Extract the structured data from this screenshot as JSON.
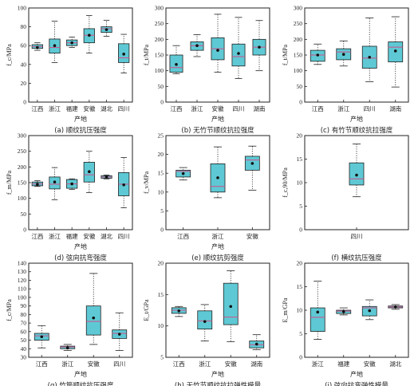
{
  "colors": {
    "box_fill": "#5ec9d4",
    "median_line": "#d1508a",
    "axis": "#222222"
  },
  "chart_data": [
    {
      "type": "box",
      "title": "(a) 顺纹抗压强度",
      "ylabel": "f_c/MPa",
      "xlabel": "产地",
      "ylim": [
        0,
        100
      ],
      "yticks": [
        0,
        20,
        40,
        60,
        80,
        100
      ],
      "categories": [
        "江西",
        "浙江",
        "福建",
        "安徽",
        "湖北",
        "四川"
      ],
      "boxes": [
        {
          "min": 55,
          "q1": 57,
          "median": 59,
          "q3": 61,
          "max": 63,
          "mean": 58
        },
        {
          "min": 42,
          "q1": 52,
          "median": 58,
          "q3": 67,
          "max": 86,
          "mean": 60
        },
        {
          "min": 58,
          "q1": 60,
          "median": 63,
          "q3": 66,
          "max": 69,
          "mean": 63
        },
        {
          "min": 52,
          "q1": 63,
          "median": 71,
          "q3": 78,
          "max": 92,
          "mean": 71
        },
        {
          "min": 70,
          "q1": 74,
          "median": 78,
          "q3": 80,
          "max": 87,
          "mean": 77
        },
        {
          "min": 31,
          "q1": 42,
          "median": 47,
          "q3": 62,
          "max": 72,
          "mean": 51
        }
      ]
    },
    {
      "type": "box",
      "title": "(b) 无竹节顺纹抗拉强度",
      "ylabel": "f_t/MPa",
      "xlabel": "产地",
      "ylim": [
        0,
        300
      ],
      "yticks": [
        0,
        50,
        100,
        150,
        200,
        250,
        300
      ],
      "categories": [
        "江西",
        "浙江",
        "安徽",
        "四川",
        "湖南"
      ],
      "boxes": [
        {
          "min": 90,
          "q1": 95,
          "median": 110,
          "q3": 150,
          "max": 180,
          "mean": 120
        },
        {
          "min": 145,
          "q1": 165,
          "median": 180,
          "q3": 192,
          "max": 215,
          "mean": 180
        },
        {
          "min": 95,
          "q1": 135,
          "median": 170,
          "q3": 205,
          "max": 280,
          "mean": 165
        },
        {
          "min": 75,
          "q1": 115,
          "median": 145,
          "q3": 185,
          "max": 270,
          "mean": 155
        },
        {
          "min": 100,
          "q1": 150,
          "median": 175,
          "q3": 200,
          "max": 260,
          "mean": 175
        }
      ]
    },
    {
      "type": "box",
      "title": "(c) 有竹节顺纹抗拉强度",
      "ylabel": "f_t/MPa",
      "xlabel": "产地",
      "ylim": [
        0,
        300
      ],
      "yticks": [
        0,
        50,
        100,
        150,
        200,
        250,
        300
      ],
      "categories": [
        "江西",
        "浙江",
        "四川",
        "湖南"
      ],
      "boxes": [
        {
          "min": 120,
          "q1": 130,
          "median": 150,
          "q3": 165,
          "max": 185,
          "mean": 150
        },
        {
          "min": 115,
          "q1": 135,
          "median": 160,
          "q3": 170,
          "max": 195,
          "mean": 152
        },
        {
          "min": 65,
          "q1": 108,
          "median": 140,
          "q3": 178,
          "max": 268,
          "mean": 143
        },
        {
          "min": 48,
          "q1": 128,
          "median": 175,
          "q3": 192,
          "max": 272,
          "mean": 163
        }
      ]
    },
    {
      "type": "box",
      "title": "(d) 弦向抗弯强度",
      "ylabel": "f_m/MPa",
      "xlabel": "产地",
      "ylim": [
        0,
        300
      ],
      "yticks": [
        0,
        50,
        100,
        150,
        200,
        250,
        300
      ],
      "categories": [
        "江西",
        "浙江",
        "福建",
        "安徽",
        "湖北",
        "四川"
      ],
      "boxes": [
        {
          "min": 138,
          "q1": 140,
          "median": 146,
          "q3": 152,
          "max": 156,
          "mean": 145
        },
        {
          "min": 95,
          "q1": 130,
          "median": 145,
          "q3": 168,
          "max": 198,
          "mean": 152
        },
        {
          "min": 128,
          "q1": 132,
          "median": 146,
          "q3": 160,
          "max": 162,
          "mean": 146
        },
        {
          "min": 118,
          "q1": 152,
          "median": 175,
          "q3": 215,
          "max": 250,
          "mean": 185
        },
        {
          "min": 162,
          "q1": 164,
          "median": 168,
          "q3": 172,
          "max": 174,
          "mean": 168
        },
        {
          "min": 70,
          "q1": 108,
          "median": 145,
          "q3": 182,
          "max": 230,
          "mean": 143
        }
      ]
    },
    {
      "type": "box",
      "title": "(e) 顺纹抗剪强度",
      "ylabel": "f_v/MPa",
      "xlabel": "产地",
      "ylim": [
        0,
        25
      ],
      "yticks": [
        0,
        5,
        10,
        15,
        20,
        25
      ],
      "categories": [
        "江西",
        "浙江",
        "安徽"
      ],
      "boxes": [
        {
          "min": 13.2,
          "q1": 14.0,
          "median": 15.5,
          "q3": 15.8,
          "max": 16.5,
          "mean": 14.9
        },
        {
          "min": 8.5,
          "q1": 10.0,
          "median": 11.5,
          "q3": 17.5,
          "max": 22.0,
          "mean": 13.8
        },
        {
          "min": 10.5,
          "q1": 15.8,
          "median": 18.5,
          "q3": 19.5,
          "max": 22.2,
          "mean": 17.6
        }
      ]
    },
    {
      "type": "box",
      "title": "(f) 横纹抗压强度",
      "ylabel": "f_c,90/MPa",
      "xlabel": "",
      "ylim": [
        0,
        20
      ],
      "yticks": [
        0,
        5,
        10,
        15,
        20
      ],
      "categories": [
        "四川"
      ],
      "boxes": [
        {
          "min": 7.0,
          "q1": 9.5,
          "median": 10.8,
          "q3": 14.2,
          "max": 18.2,
          "mean": 11.6
        }
      ]
    },
    {
      "type": "box",
      "title": "(g) 竹筒顺纹抗压强度",
      "ylabel": "f_c/MPa",
      "xlabel": "产地",
      "ylim": [
        30,
        140
      ],
      "yticks": [
        30,
        40,
        50,
        60,
        70,
        80,
        90,
        100,
        110,
        120,
        130,
        140
      ],
      "categories": [
        "江西",
        "浙江",
        "安徽",
        "四川"
      ],
      "boxes": [
        {
          "min": 41,
          "q1": 50,
          "median": 55,
          "q3": 58,
          "max": 67,
          "mean": 54
        },
        {
          "min": 38,
          "q1": 40,
          "median": 42,
          "q3": 43,
          "max": 45,
          "mean": 41
        },
        {
          "min": 45,
          "q1": 56,
          "median": 72,
          "q3": 90,
          "max": 128,
          "mean": 76
        },
        {
          "min": 38,
          "q1": 52,
          "median": 58,
          "q3": 62,
          "max": 82,
          "mean": 57
        }
      ]
    },
    {
      "type": "box",
      "title": "(h) 无竹节顺纹抗拉弹性模量",
      "ylabel": "E_t/GPa",
      "xlabel": "产地",
      "ylim": [
        5,
        20
      ],
      "yticks": [
        5,
        10,
        15,
        20
      ],
      "categories": [
        "江西",
        "浙江",
        "安徽",
        "湖南"
      ],
      "boxes": [
        {
          "min": 11.5,
          "q1": 12.0,
          "median": 12.5,
          "q3": 12.9,
          "max": 13.1,
          "mean": 12.4
        },
        {
          "min": 7.6,
          "q1": 9.5,
          "median": 10.8,
          "q3": 12.4,
          "max": 13.4,
          "mean": 10.7
        },
        {
          "min": 7.5,
          "q1": 10.2,
          "median": 11.4,
          "q3": 16.8,
          "max": 18.8,
          "mean": 13.1
        },
        {
          "min": 6.2,
          "q1": 6.5,
          "median": 7.0,
          "q3": 7.6,
          "max": 8.6,
          "mean": 7.1
        }
      ]
    },
    {
      "type": "box",
      "title": "(i) 弦向抗弯弹性模量",
      "ylabel": "E_m/GPa",
      "xlabel": "产地",
      "ylim": [
        0,
        20
      ],
      "yticks": [
        0,
        5,
        10,
        15,
        20
      ],
      "categories": [
        "浙江",
        "福建",
        "安徽",
        "湖北"
      ],
      "boxes": [
        {
          "min": 3.8,
          "q1": 5.5,
          "median": 8.5,
          "q3": 10.5,
          "max": 16.2,
          "mean": 9.6
        },
        {
          "min": 9.0,
          "q1": 9.3,
          "median": 9.8,
          "q3": 10.0,
          "max": 10.5,
          "mean": 9.7
        },
        {
          "min": 8.0,
          "q1": 8.8,
          "median": 10.5,
          "q3": 10.8,
          "max": 12.2,
          "mean": 9.9
        },
        {
          "min": 10.2,
          "q1": 10.5,
          "median": 10.7,
          "q3": 10.9,
          "max": 11.2,
          "mean": 10.7
        }
      ]
    }
  ]
}
